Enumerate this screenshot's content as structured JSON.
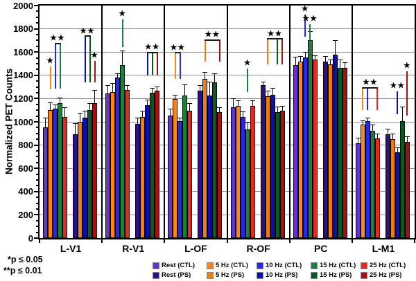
{
  "chart_data": {
    "type": "bar",
    "title": "",
    "ylabel": "Normalized PET Counts",
    "ylim": [
      0,
      2000
    ],
    "yticks": [
      0,
      200,
      400,
      600,
      800,
      1000,
      1200,
      1400,
      1600,
      1800,
      2000
    ],
    "ytick_step": 200,
    "ytick_minor_step": 50,
    "grid": "horizontal-gray",
    "legend_position": "bottom",
    "categories": [
      "L-V1",
      "R-V1",
      "L-OF",
      "R-OF",
      "PC",
      "L-M1"
    ],
    "series": [
      {
        "name": "Rest (CTL)",
        "color": "#6633CC",
        "pattern": false,
        "values": [
          955,
          1245,
          1055,
          1125,
          1490,
          815
        ],
        "errors": [
          75,
          65,
          55,
          75,
          65,
          45
        ]
      },
      {
        "name": "5 Hz (CTL)",
        "color": "#FF8519",
        "pattern": false,
        "values": [
          1100,
          1255,
          1195,
          1135,
          1520,
          975
        ],
        "errors": [
          65,
          75,
          35,
          45,
          45,
          35
        ]
      },
      {
        "name": "10 Hz (CTL)",
        "color": "#2828E8",
        "pattern": false,
        "values": [
          1115,
          1380,
          1005,
          1040,
          1555,
          1005
        ],
        "errors": [
          30,
          35,
          25,
          45,
          45,
          25
        ]
      },
      {
        "name": "15 Hz (CTL)",
        "color": "#1E7E3C",
        "pattern": false,
        "values": [
          1160,
          1490,
          1225,
          935,
          1700,
          920
        ],
        "errors": [
          45,
          120,
          95,
          55,
          75,
          55
        ]
      },
      {
        "name": "25 Hz (CTL)",
        "color": "#E82820",
        "pattern": false,
        "values": [
          1040,
          1275,
          1095,
          1135,
          1535,
          860
        ],
        "errors": [
          85,
          35,
          60,
          45,
          35,
          35
        ]
      },
      {
        "name": "Rest (PS)",
        "color": "#2D0F87",
        "pattern": true,
        "values": [
          890,
          980,
          1265,
          1315,
          1520,
          895
        ],
        "errors": [
          95,
          55,
          45,
          30,
          45,
          45
        ]
      },
      {
        "name": "5 Hz (PS)",
        "color": "#EF7D15",
        "pattern": true,
        "values": [
          1000,
          1040,
          1370,
          1220,
          1495,
          850
        ],
        "errors": [
          75,
          55,
          55,
          45,
          35,
          45
        ]
      },
      {
        "name": "10 Hz (PS)",
        "color": "#0D0DB0",
        "pattern": true,
        "values": [
          1035,
          1145,
          1225,
          1235,
          1575,
          740
        ],
        "errors": [
          60,
          40,
          120,
          55,
          125,
          35
        ]
      },
      {
        "name": "15 Hz (PS)",
        "color": "#0B5A22",
        "pattern": true,
        "values": [
          1100,
          1250,
          1340,
          1085,
          1465,
          1005
        ],
        "errors": [
          60,
          40,
          75,
          45,
          65,
          125
        ]
      },
      {
        "name": "25 Hz (PS)",
        "color": "#A31111",
        "pattern": true,
        "values": [
          1160,
          1265,
          1085,
          1095,
          1465,
          825
        ],
        "errors": [
          110,
          35,
          35,
          40,
          45,
          45
        ]
      }
    ],
    "significance": [
      {
        "panel": 0,
        "stars": 1,
        "type": "line",
        "bars": [
          1
        ],
        "top": 1475,
        "bottom": 1280
      },
      {
        "panel": 0,
        "stars": 2,
        "type": "bracket",
        "bars": [
          2,
          3
        ],
        "top": 1670,
        "bottom": 1285
      },
      {
        "panel": 0,
        "stars": 2,
        "type": "bracket",
        "bars": [
          7,
          8
        ],
        "top": 1735,
        "bottom": 1340
      },
      {
        "panel": 0,
        "stars": 1,
        "type": "line",
        "bars": [
          9
        ],
        "top": 1525,
        "bottom": 1340
      },
      {
        "panel": 1,
        "stars": 1,
        "type": "line",
        "bars": [
          3
        ],
        "top": 1880,
        "bottom": 1645
      },
      {
        "panel": 1,
        "stars": 2,
        "type": "bracket",
        "bars": [
          7,
          8,
          9
        ],
        "top": 1595,
        "bottom": 1400
      },
      {
        "panel": 2,
        "stars": 2,
        "type": "bracket",
        "bars": [
          1,
          2
        ],
        "top": 1590,
        "bottom": 1370
      },
      {
        "panel": 2,
        "stars": 2,
        "type": "bracket",
        "bars": [
          6,
          9
        ],
        "top": 1700,
        "bottom": 1520
      },
      {
        "panel": 3,
        "stars": 1,
        "type": "line",
        "bars": [
          3
        ],
        "top": 1460,
        "bottom": 1255
      },
      {
        "panel": 3,
        "stars": 2,
        "type": "bracket",
        "bars": [
          6,
          8,
          9
        ],
        "top": 1710,
        "bottom": 1495
      },
      {
        "panel": 4,
        "stars": 1,
        "type": "line",
        "bars": [
          2
        ],
        "top": 1920,
        "bottom": 1730
      },
      {
        "panel": 4,
        "stars": 2,
        "type": "line",
        "bars": [
          3
        ],
        "top": 1840,
        "bottom": 1670
      },
      {
        "panel": 5,
        "stars": 2,
        "type": "bracket",
        "bars": [
          1,
          2,
          4
        ],
        "top": 1290,
        "bottom": 1100
      },
      {
        "panel": 5,
        "stars": 2,
        "type": "line",
        "bars": [
          7
        ],
        "top": 1260,
        "bottom": 1065
      },
      {
        "panel": 5,
        "stars": 1,
        "type": "line",
        "bars": [
          9
        ],
        "top": 1435,
        "bottom": 1055
      }
    ]
  },
  "footnotes": [
    "*p ≤ 0.05",
    "**p ≤ 0.01"
  ],
  "star_glyph": "★"
}
